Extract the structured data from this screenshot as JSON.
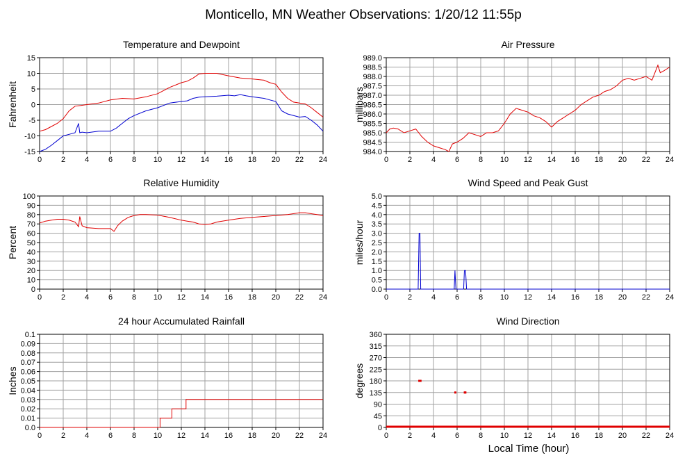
{
  "page": {
    "title": "Monticello, MN Weather Observations: 1/20/12 11:55p",
    "xlabel": "Local Time (hour)"
  },
  "colors": {
    "series_red": "#e00000",
    "series_blue": "#0000d0",
    "grid": "#a0a0a0",
    "frame": "#000000"
  },
  "chart_data": [
    {
      "id": "temp",
      "type": "line",
      "title": "Temperature and Dewpoint",
      "ylabel": "Fahrenheit",
      "xlim": [
        0,
        24
      ],
      "xticks": [
        0,
        2,
        4,
        6,
        8,
        10,
        12,
        14,
        16,
        18,
        20,
        22,
        24
      ],
      "ylim": [
        -15,
        15
      ],
      "yticks": [
        -15,
        -10,
        -5,
        0,
        5,
        10,
        15
      ],
      "ytick_labels": [
        "-15",
        "-10",
        "-5",
        "0",
        "5",
        "10",
        "15"
      ],
      "series": [
        {
          "color": "#e00000",
          "x": [
            0,
            0.5,
            1,
            1.5,
            2,
            2.5,
            3,
            3.5,
            4,
            5,
            6,
            7,
            8,
            9,
            10,
            11,
            12,
            12.5,
            13,
            13.5,
            14,
            15,
            16,
            17,
            18,
            19,
            19.5,
            20,
            20.5,
            21,
            21.5,
            22,
            22.5,
            23,
            23.5,
            24
          ],
          "y": [
            -8.5,
            -8,
            -7,
            -6,
            -4.5,
            -2,
            -0.5,
            -0.3,
            0,
            0.5,
            1.5,
            2,
            1.8,
            2.5,
            3.5,
            5.5,
            7,
            7.5,
            8.5,
            9.8,
            10,
            10,
            9.2,
            8.5,
            8.2,
            7.8,
            7,
            6.5,
            4,
            2,
            0.8,
            0.5,
            0.2,
            -1,
            -2.5,
            -4
          ]
        },
        {
          "color": "#0000d0",
          "x": [
            0,
            0.5,
            1,
            1.5,
            2,
            2.5,
            3,
            3.3,
            3.4,
            3.6,
            4,
            5,
            6,
            6.5,
            7,
            7.5,
            8,
            9,
            10,
            11,
            12,
            12.5,
            13,
            13.5,
            14,
            15,
            16,
            16.5,
            17,
            17.5,
            18,
            19,
            19.5,
            20,
            20.5,
            21,
            22,
            22.5,
            23,
            23.5,
            24
          ],
          "y": [
            -15,
            -14.3,
            -13,
            -11.5,
            -10,
            -9.5,
            -9,
            -6,
            -9,
            -8.8,
            -9,
            -8.5,
            -8.5,
            -7.5,
            -6,
            -4.5,
            -3.5,
            -2,
            -1,
            0.5,
            1,
            1.2,
            2,
            2.4,
            2.5,
            2.7,
            3,
            2.8,
            3.2,
            2.8,
            2.5,
            2,
            1.5,
            1,
            -2,
            -3,
            -4,
            -3.8,
            -5,
            -6.5,
            -8.5
          ]
        }
      ]
    },
    {
      "id": "pressure",
      "type": "line",
      "title": "Air Pressure",
      "ylabel": "millibars",
      "xlim": [
        0,
        24
      ],
      "xticks": [
        0,
        2,
        4,
        6,
        8,
        10,
        12,
        14,
        16,
        18,
        20,
        22,
        24
      ],
      "ylim": [
        984,
        989
      ],
      "yticks": [
        984,
        984.5,
        985,
        985.5,
        986,
        986.5,
        987,
        987.5,
        988,
        988.5,
        989
      ],
      "ytick_labels": [
        "984.0",
        "984.5",
        "985.0",
        "985.5",
        "986.0",
        "986.5",
        "987.0",
        "987.5",
        "988.0",
        "988.5",
        "989.0"
      ],
      "series": [
        {
          "color": "#e00000",
          "x": [
            0,
            0.3,
            0.6,
            1,
            1.5,
            2,
            2.5,
            3,
            3.5,
            4,
            4.5,
            5,
            5.3,
            5.6,
            6,
            6.5,
            7,
            7.5,
            8,
            8.5,
            9,
            9.5,
            10,
            10.5,
            11,
            11.5,
            12,
            12.5,
            13,
            13.5,
            14,
            14.5,
            15,
            15.5,
            16,
            16.5,
            17,
            17.5,
            18,
            18.5,
            19,
            19.5,
            20,
            20.5,
            21,
            21.5,
            22,
            22.5,
            23,
            23.2,
            23.5,
            24
          ],
          "y": [
            985.0,
            985.2,
            985.25,
            985.2,
            985.0,
            985.1,
            985.2,
            984.8,
            984.5,
            984.3,
            984.2,
            984.1,
            984.0,
            984.4,
            984.5,
            984.7,
            985.0,
            984.9,
            984.8,
            985.0,
            985.0,
            985.1,
            985.5,
            986.0,
            986.3,
            986.2,
            986.1,
            985.9,
            985.8,
            985.6,
            985.3,
            985.6,
            985.8,
            986.0,
            986.2,
            986.5,
            986.7,
            986.9,
            987.0,
            987.2,
            987.3,
            987.5,
            987.8,
            987.9,
            987.8,
            987.9,
            988.0,
            987.8,
            988.6,
            988.2,
            988.3,
            988.5
          ]
        }
      ]
    },
    {
      "id": "humidity",
      "type": "line",
      "title": "Relative Humidity",
      "ylabel": "Percent",
      "xlim": [
        0,
        24
      ],
      "xticks": [
        0,
        2,
        4,
        6,
        8,
        10,
        12,
        14,
        16,
        18,
        20,
        22,
        24
      ],
      "ylim": [
        0,
        100
      ],
      "yticks": [
        0,
        10,
        20,
        30,
        40,
        50,
        60,
        70,
        80,
        90,
        100
      ],
      "ytick_labels": [
        "0",
        "10",
        "20",
        "30",
        "40",
        "50",
        "60",
        "70",
        "80",
        "90",
        "100"
      ],
      "series": [
        {
          "color": "#e00000",
          "x": [
            0,
            0.5,
            1,
            1.5,
            2,
            2.5,
            3,
            3.3,
            3.4,
            3.6,
            4,
            5,
            6,
            6.3,
            6.6,
            7,
            7.5,
            8,
            8.5,
            9,
            10,
            11,
            12,
            12.5,
            13,
            13.5,
            14,
            14.5,
            15,
            16,
            17,
            18,
            19,
            20,
            21,
            22,
            22.5,
            23,
            24
          ],
          "y": [
            71,
            73,
            74,
            75,
            75,
            74,
            72,
            67,
            78,
            68,
            66,
            65,
            65,
            62,
            68,
            73,
            77,
            79,
            80,
            80,
            79.5,
            77,
            74,
            73,
            72,
            70,
            69.5,
            70,
            72,
            74,
            76,
            77,
            78,
            79,
            80,
            82,
            82,
            81,
            79
          ]
        }
      ]
    },
    {
      "id": "wind",
      "type": "line",
      "title": "Wind Speed and Peak Gust",
      "ylabel": "miles/hour",
      "xlim": [
        0,
        24
      ],
      "xticks": [
        0,
        2,
        4,
        6,
        8,
        10,
        12,
        14,
        16,
        18,
        20,
        22,
        24
      ],
      "ylim": [
        0,
        5
      ],
      "yticks": [
        0,
        0.5,
        1,
        1.5,
        2,
        2.5,
        3,
        3.5,
        4,
        4.5,
        5
      ],
      "ytick_labels": [
        "0.0",
        "0.5",
        "1.0",
        "1.5",
        "2.0",
        "2.5",
        "3.0",
        "3.5",
        "4.0",
        "4.5",
        "5.0"
      ],
      "series": [
        {
          "color": "#0000d0",
          "x": [
            0,
            2.7,
            2.78,
            2.85,
            2.92,
            3.0,
            5.75,
            5.82,
            5.9,
            6.55,
            6.62,
            6.72,
            6.8,
            24
          ],
          "y": [
            0,
            0,
            3.0,
            3.0,
            0,
            0,
            0,
            1.0,
            0,
            0,
            1.0,
            1.0,
            0,
            0
          ]
        }
      ]
    },
    {
      "id": "rain",
      "type": "line",
      "title": "24 hour Accumulated Rainfall",
      "ylabel": "Inches",
      "xlim": [
        0,
        24
      ],
      "xticks": [
        0,
        2,
        4,
        6,
        8,
        10,
        12,
        14,
        16,
        18,
        20,
        22,
        24
      ],
      "ylim": [
        0,
        0.1
      ],
      "yticks": [
        0,
        0.01,
        0.02,
        0.03,
        0.04,
        0.05,
        0.06,
        0.07,
        0.08,
        0.09,
        0.1
      ],
      "ytick_labels": [
        "0.0",
        "0.01",
        "0.02",
        "0.03",
        "0.04",
        "0.05",
        "0.06",
        "0.07",
        "0.08",
        "0.09",
        "0.1"
      ],
      "series": [
        {
          "color": "#e00000",
          "x": [
            0,
            10.2,
            10.2,
            11.2,
            11.2,
            12.4,
            12.4,
            24
          ],
          "y": [
            0,
            0,
            0.01,
            0.01,
            0.02,
            0.02,
            0.03,
            0.03
          ]
        }
      ]
    },
    {
      "id": "direction",
      "type": "scatter",
      "title": "Wind Direction",
      "ylabel": "degrees",
      "xlim": [
        0,
        24
      ],
      "xticks": [
        0,
        2,
        4,
        6,
        8,
        10,
        12,
        14,
        16,
        18,
        20,
        22,
        24
      ],
      "ylim": [
        0,
        360
      ],
      "yticks": [
        0,
        45,
        90,
        135,
        180,
        225,
        270,
        315,
        360
      ],
      "ytick_labels": [
        "0",
        "45",
        "90",
        "135",
        "180",
        "225",
        "270",
        "315",
        "360"
      ],
      "baseline_value": 0,
      "series": [
        {
          "color": "#e00000",
          "x": [
            2.8,
            2.9,
            5.85,
            6.65,
            6.7
          ],
          "y": [
            180,
            180,
            135,
            135,
            135
          ]
        }
      ]
    }
  ]
}
